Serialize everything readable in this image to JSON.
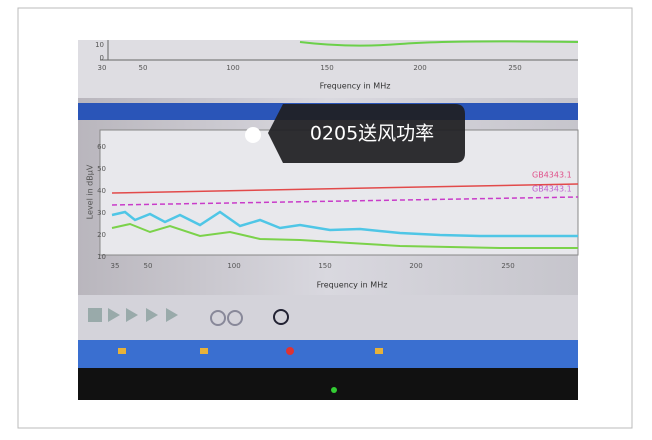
{
  "overlay": {
    "label": "0205送风功率"
  },
  "top_chart": {
    "x_ticks": [
      "30",
      "50",
      "100",
      "150",
      "200",
      "250"
    ],
    "x_label": "Frequency in MHz",
    "y_ticks": [
      "10",
      "0"
    ]
  },
  "bottom_chart": {
    "y_label": "Level in dBµV",
    "y_ticks": [
      "60",
      "50",
      "40",
      "30",
      "20",
      "10"
    ],
    "x_ticks": [
      "35",
      "50",
      "100",
      "150",
      "200",
      "250"
    ],
    "x_label": "Frequency in MHz",
    "legend": [
      "GB4343.1",
      "GB4343.1"
    ]
  }
}
